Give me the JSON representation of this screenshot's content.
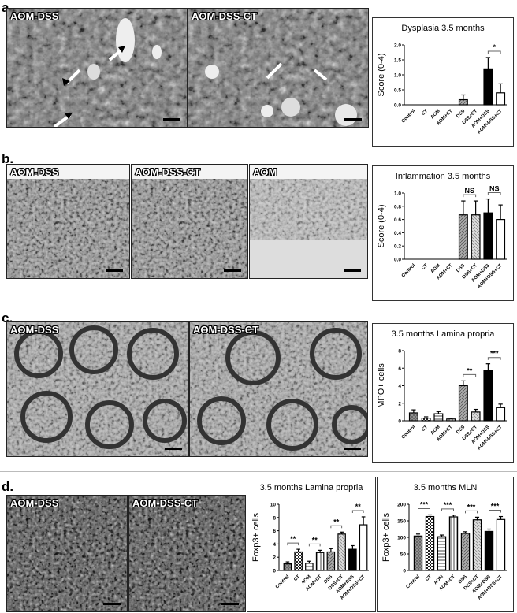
{
  "panels": {
    "a": {
      "label": "a.",
      "images": [
        "AOM-DSS",
        "AOM-DSS-CT"
      ]
    },
    "b": {
      "label": "b.",
      "images": [
        "AOM-DSS",
        "AOM-DSS-CT",
        "AOM"
      ]
    },
    "c": {
      "label": "c.",
      "images": [
        "AOM-DSS",
        "AOM-DSS-CT"
      ]
    },
    "d": {
      "label": "d.",
      "images": [
        "AOM-DSS",
        "AOM-DSS-CT"
      ]
    }
  },
  "colors": {
    "black_bar": "#000000",
    "white_bar": "#ffffff",
    "pattern_gray": "#888888"
  },
  "chart_data": [
    {
      "type": "bar",
      "title": "Dysplasia 3.5 months",
      "ylabel": "Score (0-4)",
      "xlabel": "",
      "categories": [
        "Control",
        "CT",
        "AOM",
        "AOM+CT",
        "DSS",
        "DSS+CT",
        "AOM+DSS",
        "AOM+DSS+CT"
      ],
      "values": [
        0,
        0,
        0,
        0,
        0.17,
        0,
        1.2,
        0.4
      ],
      "errors": [
        0,
        0,
        0,
        0,
        0.16,
        0,
        0.38,
        0.3
      ],
      "ylim": [
        0,
        2.0
      ],
      "yticks": [
        "0.0",
        "0.5",
        "1.0",
        "1.5",
        "2.0"
      ],
      "significance": [
        {
          "pair": [
            6,
            7
          ],
          "label": "*"
        }
      ]
    },
    {
      "type": "bar",
      "title": "Inflammation 3.5 months",
      "ylabel": "Score (0-4)",
      "xlabel": "",
      "categories": [
        "Control",
        "CT",
        "AOM",
        "AOM+CT",
        "DSS",
        "DSS+CT",
        "AOM+DSS",
        "AOM+DSS+CT"
      ],
      "values": [
        0,
        0,
        0,
        0,
        0.67,
        0.67,
        0.7,
        0.6
      ],
      "errors": [
        0,
        0,
        0,
        0,
        0.21,
        0.21,
        0.21,
        0.22
      ],
      "ylim": [
        0,
        1.0
      ],
      "yticks": [
        "0.0",
        "0.2",
        "0.4",
        "0.6",
        "0.8",
        "1.0"
      ],
      "significance": [
        {
          "pair": [
            4,
            5
          ],
          "label": "NS"
        },
        {
          "pair": [
            6,
            7
          ],
          "label": "NS"
        }
      ]
    },
    {
      "type": "bar",
      "title": "3.5 months Lamina propria",
      "ylabel": "MPO+ cells",
      "xlabel": "",
      "categories": [
        "Control",
        "CT",
        "AOM",
        "AOM+CT",
        "DSS",
        "DSS+CT",
        "AOM+DSS",
        "AOM+DSS+CT"
      ],
      "values": [
        0.9,
        0.3,
        0.8,
        0.2,
        4.0,
        1.0,
        5.7,
        1.5
      ],
      "errors": [
        0.35,
        0.15,
        0.25,
        0.1,
        0.55,
        0.3,
        0.8,
        0.4
      ],
      "ylim": [
        0,
        8
      ],
      "yticks": [
        "0",
        "2",
        "4",
        "6",
        "8"
      ],
      "significance": [
        {
          "pair": [
            4,
            5
          ],
          "label": "**"
        },
        {
          "pair": [
            6,
            7
          ],
          "label": "***"
        }
      ]
    },
    {
      "type": "bar",
      "title": "3.5 months Lamina propria",
      "ylabel": "Foxp3+ cells",
      "xlabel": "",
      "categories": [
        "Control",
        "CT",
        "AOM",
        "AOM+CT",
        "DSS",
        "DSS+CT",
        "AOM+DSS",
        "AOM+DSS+CT"
      ],
      "values": [
        1.0,
        2.8,
        1.1,
        2.7,
        2.8,
        5.5,
        3.2,
        6.9
      ],
      "errors": [
        0.3,
        0.4,
        0.3,
        0.35,
        0.5,
        0.3,
        0.55,
        1.2
      ],
      "ylim": [
        0,
        10
      ],
      "yticks": [
        "0",
        "2",
        "4",
        "6",
        "8",
        "10"
      ],
      "significance": [
        {
          "pair": [
            0,
            1
          ],
          "label": "**"
        },
        {
          "pair": [
            2,
            3
          ],
          "label": "**"
        },
        {
          "pair": [
            4,
            5
          ],
          "label": "**"
        },
        {
          "pair": [
            6,
            7
          ],
          "label": "**"
        }
      ]
    },
    {
      "type": "bar",
      "title": "3.5 months MLN",
      "ylabel": "Foxp3+ cells",
      "xlabel": "",
      "categories": [
        "Control",
        "CT",
        "AOM",
        "AOM+CT",
        "DSS",
        "DSS+CT",
        "AOM+DSS",
        "AOM+DSS+CT"
      ],
      "values": [
        104,
        163,
        102,
        162,
        112,
        153,
        118,
        154
      ],
      "errors": [
        6,
        5,
        5,
        5,
        5,
        8,
        7,
        9
      ],
      "ylim": [
        0,
        200
      ],
      "yticks": [
        "0",
        "50",
        "100",
        "150",
        "200"
      ],
      "significance": [
        {
          "pair": [
            0,
            1
          ],
          "label": "***"
        },
        {
          "pair": [
            2,
            3
          ],
          "label": "***"
        },
        {
          "pair": [
            4,
            5
          ],
          "label": "***"
        },
        {
          "pair": [
            6,
            7
          ],
          "label": "***"
        }
      ]
    }
  ]
}
